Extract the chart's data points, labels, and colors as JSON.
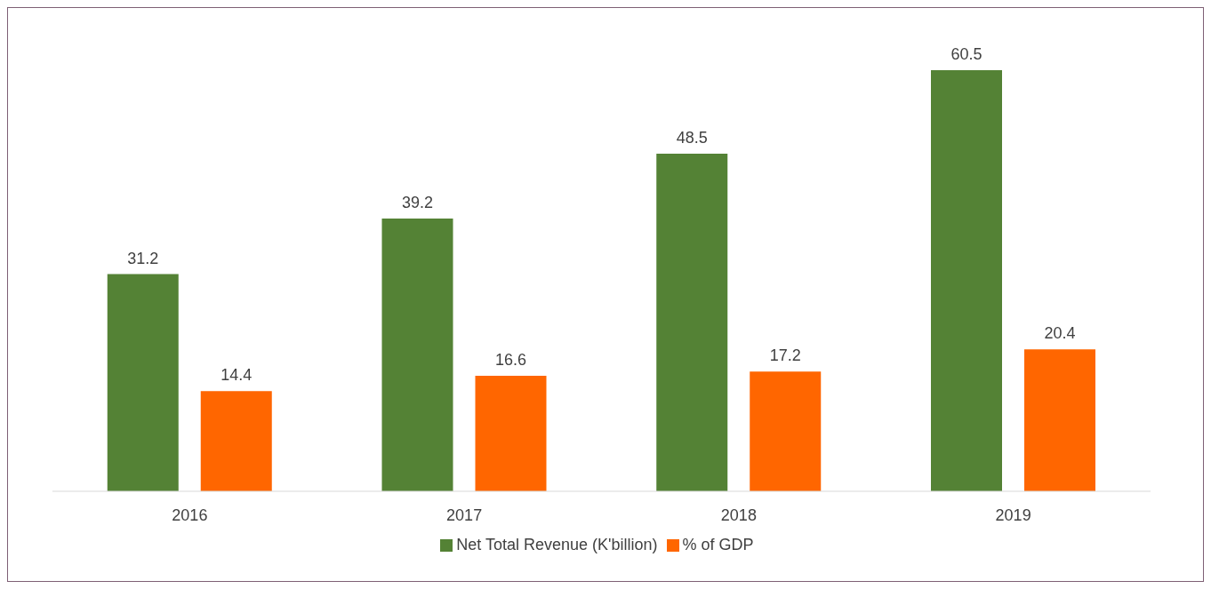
{
  "chart_data": {
    "type": "bar",
    "categories": [
      "2016",
      "2017",
      "2018",
      "2019"
    ],
    "series": [
      {
        "name": "Net Total Revenue (K'billion)",
        "color": "#548235",
        "values": [
          31.2,
          39.2,
          48.5,
          60.5
        ]
      },
      {
        "name": "% of GDP",
        "color": "#ff6600",
        "values": [
          14.4,
          16.6,
          17.2,
          20.4
        ]
      }
    ],
    "data_labels": true,
    "legend": "bottom",
    "grid": false,
    "tick_labels": "x"
  }
}
